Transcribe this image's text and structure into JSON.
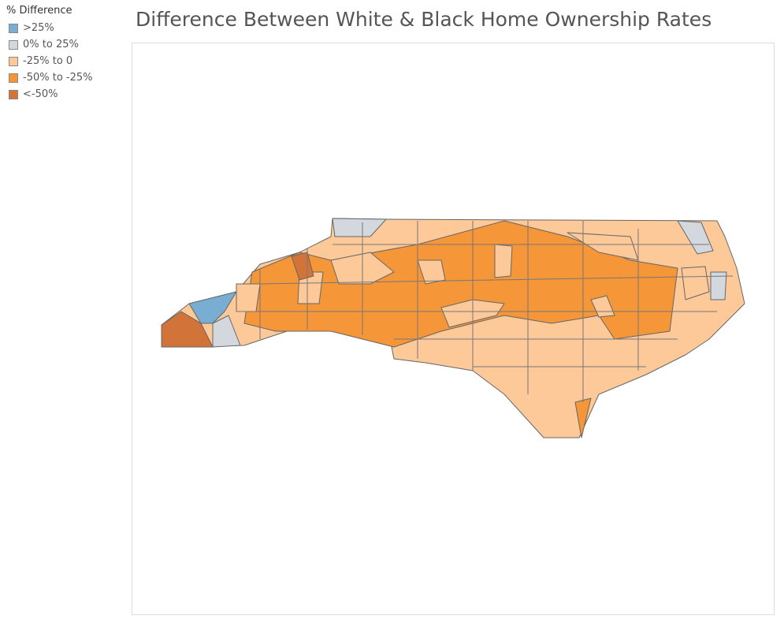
{
  "title": "Difference Between White & Black Home Ownership Rates",
  "legend": {
    "title": "% Difference",
    "items": [
      {
        "label": ">25%",
        "color": "#79aed2"
      },
      {
        "label": "0% to 25%",
        "color": "#d3d7de"
      },
      {
        "label": "-25% to 0",
        "color": "#fdc998"
      },
      {
        "label": "-50% to -25%",
        "color": "#f59638"
      },
      {
        "label": "<-50%",
        "color": "#d2733a"
      }
    ]
  }
}
